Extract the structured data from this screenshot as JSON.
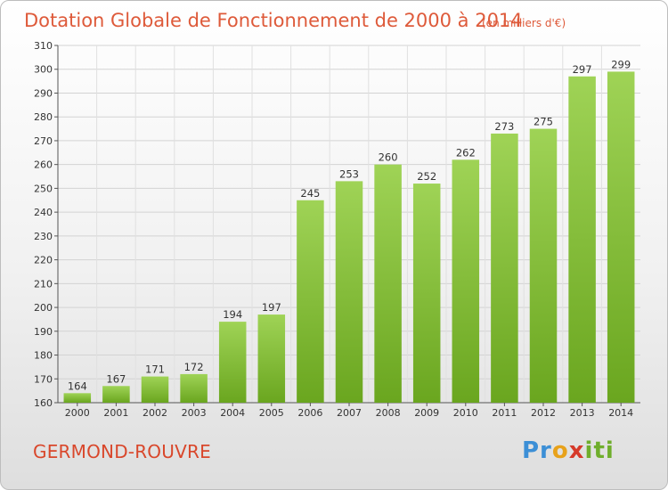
{
  "chart_data": {
    "type": "bar",
    "title": "Dotation Globale de Fonctionnement de 2000 à 2014",
    "subtitle": "(en milliers d'€)",
    "categories": [
      "2000",
      "2001",
      "2002",
      "2003",
      "2004",
      "2005",
      "2006",
      "2007",
      "2008",
      "2009",
      "2010",
      "2011",
      "2012",
      "2013",
      "2014"
    ],
    "values": [
      164,
      167,
      171,
      172,
      194,
      197,
      245,
      253,
      260,
      252,
      262,
      273,
      275,
      297,
      299
    ],
    "ylim": [
      160,
      310
    ],
    "yticks": [
      160,
      170,
      180,
      190,
      200,
      210,
      220,
      230,
      240,
      250,
      260,
      270,
      280,
      290,
      300,
      310
    ],
    "grid": true,
    "bar_color_top": "#9fd356",
    "bar_color_bottom": "#6aa61f"
  },
  "commune": "GERMOND-ROUVRE",
  "logo": {
    "p1": "Pr",
    "p2": "o",
    "p3": "x",
    "p4": "iti"
  }
}
